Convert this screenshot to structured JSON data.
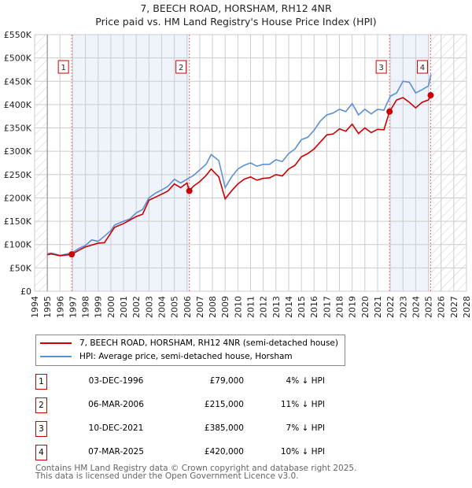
{
  "chart_data": {
    "type": "line",
    "title": "7, BEECH ROAD, HORSHAM, RH12 4NR",
    "subtitle": "Price paid vs. HM Land Registry's House Price Index (HPI)",
    "xlim": [
      1994,
      2028
    ],
    "ylim": [
      0,
      550000
    ],
    "x_ticks": [
      "1994",
      "1995",
      "1996",
      "1997",
      "1998",
      "1999",
      "2000",
      "2001",
      "2002",
      "2003",
      "2004",
      "2005",
      "2006",
      "2007",
      "2008",
      "2009",
      "2010",
      "2011",
      "2012",
      "2013",
      "2014",
      "2015",
      "2016",
      "2017",
      "2018",
      "2019",
      "2020",
      "2021",
      "2022",
      "2023",
      "2024",
      "2025",
      "2026",
      "2027",
      "2028"
    ],
    "y_ticks": [
      {
        "v": 0,
        "l": "£0"
      },
      {
        "v": 50000,
        "l": "£50K"
      },
      {
        "v": 100000,
        "l": "£100K"
      },
      {
        "v": 150000,
        "l": "£150K"
      },
      {
        "v": 200000,
        "l": "£200K"
      },
      {
        "v": 250000,
        "l": "£250K"
      },
      {
        "v": 300000,
        "l": "£300K"
      },
      {
        "v": 350000,
        "l": "£350K"
      },
      {
        "v": 400000,
        "l": "£400K"
      },
      {
        "v": 450000,
        "l": "£450K"
      },
      {
        "v": 500000,
        "l": "£500K"
      },
      {
        "v": 550000,
        "l": "£550K"
      }
    ],
    "grid": true,
    "shaded_ranges": [
      [
        1996.92,
        2006.18
      ],
      [
        2021.94,
        2025.18
      ]
    ],
    "hatched_ranges": [
      [
        1994,
        1995
      ],
      [
        2025.18,
        2028
      ]
    ],
    "series": [
      {
        "name": "7, BEECH ROAD, HORSHAM, RH12 4NR (semi-detached house)",
        "color": "#cc0000",
        "x": [
          1995,
          1995.3,
          1996,
          1996.92,
          1997.5,
          1998,
          1999,
          1999.5,
          2000,
          2000.3,
          2001,
          2002,
          2002.5,
          2003,
          2004,
          2004.5,
          2005,
          2005.5,
          2006,
          2006.18,
          2006.5,
          2007,
          2007.5,
          2007.9,
          2008.5,
          2009,
          2009.5,
          2010,
          2010.5,
          2011,
          2011.5,
          2012,
          2012.5,
          2013,
          2013.5,
          2014,
          2014.5,
          2015,
          2015.5,
          2016,
          2016.5,
          2017,
          2017.5,
          2018,
          2018.5,
          2019,
          2019.5,
          2020,
          2020.5,
          2021,
          2021.5,
          2021.94,
          2022.5,
          2023,
          2023.5,
          2024,
          2024.5,
          2025,
          2025.18
        ],
        "y": [
          78000,
          80000,
          76000,
          79000,
          88000,
          95000,
          103000,
          104000,
          125000,
          137000,
          145000,
          160000,
          165000,
          195000,
          208000,
          215000,
          230000,
          222000,
          232000,
          215000,
          225000,
          235000,
          248000,
          262000,
          245000,
          198000,
          215000,
          230000,
          240000,
          245000,
          238000,
          242000,
          243000,
          250000,
          247000,
          262000,
          270000,
          288000,
          295000,
          305000,
          320000,
          335000,
          337000,
          348000,
          343000,
          358000,
          338000,
          350000,
          340000,
          347000,
          346000,
          385000,
          410000,
          415000,
          405000,
          393000,
          405000,
          410000,
          420000
        ]
      },
      {
        "name": "HPI: Average price, semi-detached house, Horsham",
        "color": "#5b8fd6",
        "x": [
          1995,
          1995.3,
          1996,
          1996.92,
          1997.5,
          1998,
          1998.5,
          1999,
          1999.5,
          2000,
          2000.3,
          2001,
          2001.5,
          2002,
          2002.5,
          2003,
          2003.5,
          2004,
          2004.5,
          2005,
          2005.5,
          2006,
          2006.5,
          2007,
          2007.5,
          2007.9,
          2008.5,
          2009,
          2009.5,
          2010,
          2010.5,
          2011,
          2011.5,
          2012,
          2012.5,
          2013,
          2013.5,
          2014,
          2014.5,
          2015,
          2015.5,
          2016,
          2016.5,
          2017,
          2017.5,
          2018,
          2018.5,
          2019,
          2019.5,
          2020,
          2020.5,
          2021,
          2021.5,
          2022,
          2022.5,
          2023,
          2023.5,
          2024,
          2024.5,
          2025,
          2025.2
        ],
        "y": [
          80000,
          82000,
          77000,
          82000,
          92000,
          98000,
          110000,
          107000,
          118000,
          130000,
          142000,
          150000,
          155000,
          168000,
          175000,
          200000,
          210000,
          217000,
          225000,
          240000,
          232000,
          240000,
          248000,
          260000,
          272000,
          293000,
          280000,
          222000,
          245000,
          262000,
          270000,
          275000,
          268000,
          272000,
          272000,
          282000,
          278000,
          295000,
          305000,
          325000,
          330000,
          345000,
          365000,
          378000,
          382000,
          390000,
          385000,
          402000,
          378000,
          390000,
          380000,
          390000,
          388000,
          418000,
          425000,
          450000,
          448000,
          425000,
          432000,
          440000,
          465000
        ]
      }
    ],
    "markers": [
      {
        "n": "1",
        "x": 1996.92,
        "y": 79000
      },
      {
        "n": "2",
        "x": 2006.18,
        "y": 215000
      },
      {
        "n": "3",
        "x": 2021.94,
        "y": 385000
      },
      {
        "n": "4",
        "x": 2025.18,
        "y": 420000
      }
    ]
  },
  "table": [
    {
      "n": "1",
      "date": "03-DEC-1996",
      "price": "£79,000",
      "hpi": "4% ↓ HPI"
    },
    {
      "n": "2",
      "date": "06-MAR-2006",
      "price": "£215,000",
      "hpi": "11% ↓ HPI"
    },
    {
      "n": "3",
      "date": "10-DEC-2021",
      "price": "£385,000",
      "hpi": "7% ↓ HPI"
    },
    {
      "n": "4",
      "date": "07-MAR-2025",
      "price": "£420,000",
      "hpi": "10% ↓ HPI"
    }
  ],
  "footer": [
    "Contains HM Land Registry data © Crown copyright and database right 2025.",
    "This data is licensed under the Open Government Licence v3.0."
  ]
}
